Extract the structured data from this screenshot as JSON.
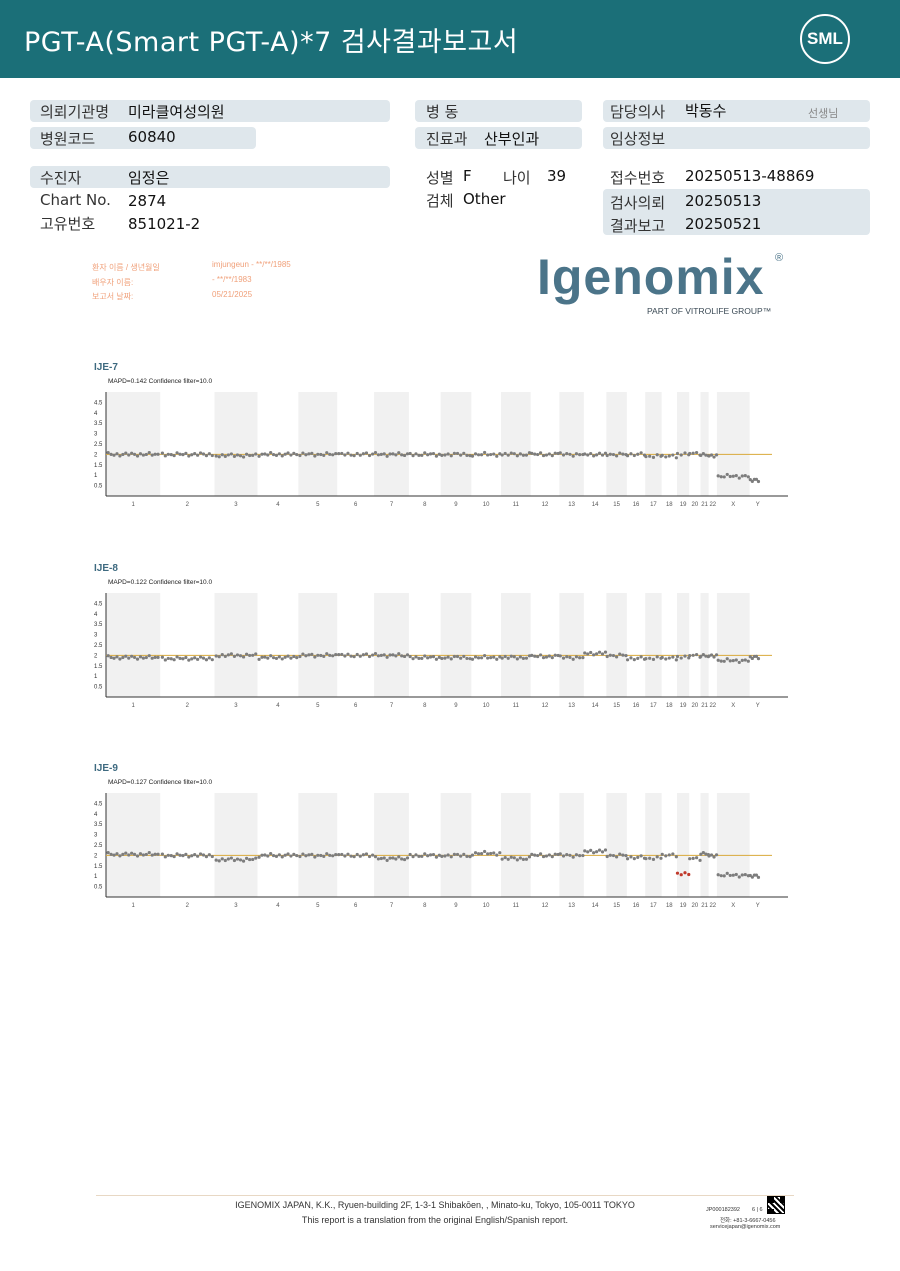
{
  "header": {
    "title": "PGT-A(Smart  PGT-A)*7 검사결과보고서",
    "logo": "SML"
  },
  "info": {
    "institution_label": "의뢰기관명",
    "institution_value": "미라클여성의원",
    "hospital_code_label": "병원코드",
    "hospital_code_value": "60840",
    "ward_label": "병  동",
    "ward_value": "",
    "dept_label": "진료과",
    "dept_value": "산부인과",
    "doctor_label": "담당의사",
    "doctor_value": "박동수",
    "doctor_suffix": "선생님",
    "clinical_label": "임상정보",
    "clinical_value": "",
    "patient_label": "수진자",
    "patient_value": "임정은",
    "chart_no_label": "Chart No.",
    "chart_no_value": "2874",
    "unique_no_label": "고유번호",
    "unique_no_value": "851021-2",
    "sex_label": "성별",
    "sex_value": "F",
    "age_label": "나이",
    "age_value": "39",
    "specimen_label": "검체",
    "specimen_value": "Other",
    "receipt_label": "접수번호",
    "receipt_value": "20250513-48869",
    "request_label": "검사의뢰",
    "request_value": "20250513",
    "report_label": "결과보고",
    "report_value": "20250521"
  },
  "patient_block": {
    "name_label": "환자 이름 / 생년월일",
    "name_value": "imjungeun - **/**/1985",
    "partner_label": "배우자 이름:",
    "partner_value": "- **/**/1983",
    "date_label": "보고서 날짜:",
    "date_value": "05/21/2025"
  },
  "brand": {
    "name": "Igenomix",
    "registered": "®",
    "tagline": "PART OF VITROLIFE GROUP™"
  },
  "chart_data": [
    {
      "type": "scatter",
      "title": "IJE-7",
      "subtitle": "MAPD=0.142 Confidence filter=10.0",
      "y_ticks": [
        "4.5",
        "4",
        "3.5",
        "3",
        "2.5",
        "2",
        "1.5",
        "1",
        "0.5"
      ],
      "ylim": [
        0,
        5
      ],
      "categories": [
        "1",
        "2",
        "3",
        "4",
        "5",
        "6",
        "7",
        "8",
        "9",
        "10",
        "11",
        "12",
        "13",
        "14",
        "15",
        "16",
        "17",
        "18",
        "19",
        "20",
        "21",
        "22",
        "X",
        "Y"
      ],
      "reference_line": 2,
      "series": [
        {
          "values": [
            2.0,
            2.0,
            1.95,
            2.0,
            2.0,
            2.0,
            2.0,
            2.0,
            2.0,
            2.0,
            2.0,
            2.0,
            2.0,
            2.0,
            2.0,
            2.0,
            1.9,
            1.9,
            2.0,
            2.05,
            2.0,
            1.95,
            0.95,
            0.75
          ]
        }
      ]
    },
    {
      "type": "scatter",
      "title": "IJE-8",
      "subtitle": "MAPD=0.122 Confidence filter=10.0",
      "y_ticks": [
        "4.5",
        "4",
        "3.5",
        "3",
        "2.5",
        "2",
        "1.5",
        "1",
        "0.5"
      ],
      "ylim": [
        0,
        5
      ],
      "categories": [
        "1",
        "2",
        "3",
        "4",
        "5",
        "6",
        "7",
        "8",
        "9",
        "10",
        "11",
        "12",
        "13",
        "14",
        "15",
        "16",
        "17",
        "18",
        "19",
        "20",
        "21",
        "22",
        "X",
        "Y"
      ],
      "reference_line": 2,
      "series": [
        {
          "values": [
            1.9,
            1.85,
            2.0,
            1.9,
            2.0,
            2.0,
            2.0,
            1.9,
            1.9,
            1.9,
            1.9,
            1.95,
            1.9,
            2.1,
            2.0,
            1.85,
            1.85,
            1.85,
            1.9,
            2.0,
            2.0,
            2.0,
            1.75,
            1.9
          ]
        }
      ]
    },
    {
      "type": "scatter",
      "title": "IJE-9",
      "subtitle": "MAPD=0.127 Confidence filter=10.0",
      "y_ticks": [
        "4.5",
        "4",
        "3.5",
        "3",
        "2.5",
        "2",
        "1.5",
        "1",
        "0.5"
      ],
      "ylim": [
        0,
        5
      ],
      "categories": [
        "1",
        "2",
        "3",
        "4",
        "5",
        "6",
        "7",
        "8",
        "9",
        "10",
        "11",
        "12",
        "13",
        "14",
        "15",
        "16",
        "17",
        "18",
        "19",
        "20",
        "21",
        "22",
        "X",
        "Y"
      ],
      "reference_line": 2,
      "series": [
        {
          "values": [
            2.05,
            2.0,
            1.8,
            2.0,
            2.0,
            2.0,
            1.85,
            2.0,
            2.0,
            2.1,
            1.85,
            2.0,
            2.0,
            2.2,
            2.0,
            1.9,
            1.85,
            2.0,
            1.1,
            1.85,
            2.1,
            2.0,
            1.05,
            1.0
          ]
        }
      ]
    }
  ],
  "footer": {
    "company": "IGENOMIX JAPAN, K.K., Ryuen-building 2F, 1-3-1 Shibakōen, , Minato-ku, Tokyo, 105-0011 TOKYO",
    "note": "This report is a translation from the original English/Spanish report.",
    "doc_id": "JP000182392",
    "page": "6 | 6",
    "tel": "전화:  +81-3-6667-0456",
    "email": "servicejapan@igenomix.com"
  }
}
